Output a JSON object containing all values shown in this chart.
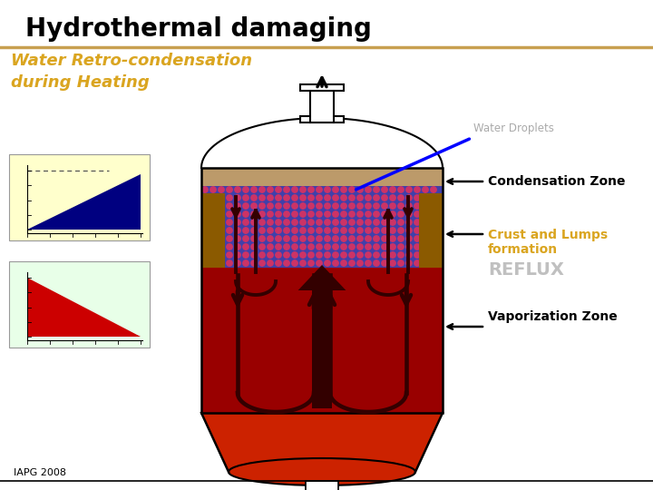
{
  "title": "Hydrothermal damaging",
  "title_color": "#000000",
  "title_fontsize": 20,
  "subtitle1": "Water Retro-condensation",
  "subtitle2": "during Heating",
  "subtitle_color": "#DAA520",
  "subtitle_fontsize": 13,
  "separator_color": "#C8A050",
  "bg_color": "#FFFFFF",
  "label_water_droplets": "Water Droplets",
  "label_condensation": "Condensation Zone",
  "label_crust": "Crust and Lumps\nformation",
  "label_crust_color": "#DAA520",
  "label_reflux": "REFLUX",
  "label_reflux_color": "#C0C0C0",
  "label_vaporization": "Vaporization Zone",
  "label_iapg": "IAPG 2008",
  "vessel_color_top": "#BC9A6A",
  "vessel_color_cond_bg": "#4040AA",
  "vessel_color_cond_dot": "#CC3366",
  "vessel_color_main": "#990000",
  "vessel_color_bottom": "#CC2200",
  "arrow_color_in": "#330000",
  "inset1_bg": "#FFFFCC",
  "inset2_bg": "#E8FFE8"
}
